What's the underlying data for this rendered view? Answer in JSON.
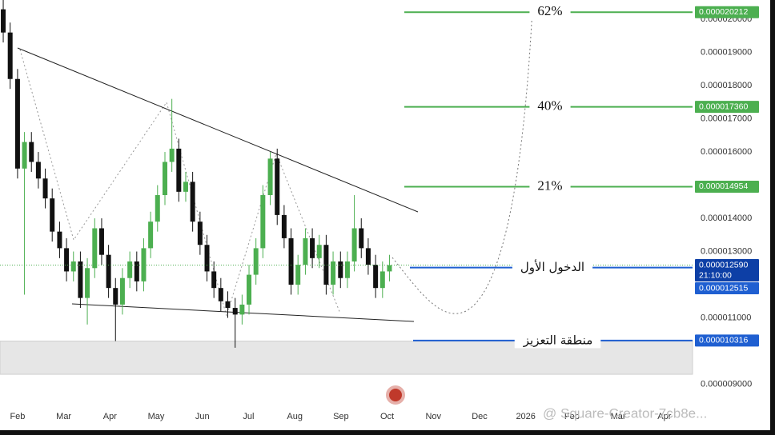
{
  "chart_data": {
    "type": "candlestick",
    "x": [
      -0.31,
      -0.16,
      0.0,
      0.15,
      0.3,
      0.45,
      0.6,
      0.75,
      0.91,
      1.06,
      1.21,
      1.36,
      1.51,
      1.67,
      1.82,
      1.97,
      2.12,
      2.27,
      2.43,
      2.58,
      2.73,
      2.88,
      3.03,
      3.19,
      3.34,
      3.49,
      3.64,
      3.79,
      3.95,
      4.1,
      4.25,
      4.4,
      4.55,
      4.71,
      4.86,
      5.01,
      5.16,
      5.31,
      5.47,
      5.62,
      5.77,
      5.92,
      6.07,
      6.23,
      6.38,
      6.53,
      6.68,
      6.83,
      6.99,
      7.14,
      7.29,
      7.44,
      7.59,
      7.75,
      7.9,
      8.05
    ],
    "open": [
      2.03e-05,
      1.96e-05,
      1.82e-05,
      1.55e-05,
      1.63e-05,
      1.57e-05,
      1.52e-05,
      1.46e-05,
      1.36e-05,
      1.31e-05,
      1.24e-05,
      1.27e-05,
      1.16e-05,
      1.25e-05,
      1.37e-05,
      1.29e-05,
      1.19e-05,
      1.14e-05,
      1.22e-05,
      1.27e-05,
      1.21e-05,
      1.31e-05,
      1.39e-05,
      1.47e-05,
      1.57e-05,
      1.61e-05,
      1.48e-05,
      1.51e-05,
      1.39e-05,
      1.32e-05,
      1.24e-05,
      1.19e-05,
      1.15e-05,
      1.13e-05,
      1.11e-05,
      1.14e-05,
      1.23e-05,
      1.31e-05,
      1.47e-05,
      1.58e-05,
      1.41e-05,
      1.34e-05,
      1.2e-05,
      1.26e-05,
      1.34e-05,
      1.28e-05,
      1.32e-05,
      1.2e-05,
      1.27e-05,
      1.22e-05,
      1.27e-05,
      1.37e-05,
      1.31e-05,
      1.26e-05,
      1.19e-05,
      1.24e-05
    ],
    "high": [
      2.06e-05,
      1.99e-05,
      1.85e-05,
      1.66e-05,
      1.66e-05,
      1.6e-05,
      1.55e-05,
      1.49e-05,
      1.39e-05,
      1.34e-05,
      1.3e-05,
      1.3e-05,
      1.28e-05,
      1.4e-05,
      1.4e-05,
      1.32e-05,
      1.22e-05,
      1.25e-05,
      1.3e-05,
      1.3e-05,
      1.34e-05,
      1.42e-05,
      1.5e-05,
      1.6e-05,
      1.76e-05,
      1.64e-05,
      1.54e-05,
      1.54e-05,
      1.42e-05,
      1.35e-05,
      1.27e-05,
      1.22e-05,
      1.18e-05,
      1.16e-05,
      1.17e-05,
      1.26e-05,
      1.34e-05,
      1.5e-05,
      1.6e-05,
      1.61e-05,
      1.44e-05,
      1.37e-05,
      1.29e-05,
      1.37e-05,
      1.37e-05,
      1.35e-05,
      1.35e-05,
      1.3e-05,
      1.3e-05,
      1.3e-05,
      1.47e-05,
      1.4e-05,
      1.34e-05,
      1.29e-05,
      1.27e-05,
      1.29e-05
    ],
    "low": [
      1.93e-05,
      1.79e-05,
      1.52e-05,
      1.17e-05,
      1.54e-05,
      1.49e-05,
      1.43e-05,
      1.33e-05,
      1.28e-05,
      1.21e-05,
      1.21e-05,
      1.13e-05,
      1.08e-05,
      1.22e-05,
      1.26e-05,
      1.16e-05,
      1.03e-05,
      1.11e-05,
      1.19e-05,
      1.18e-05,
      1.18e-05,
      1.28e-05,
      1.36e-05,
      1.44e-05,
      1.54e-05,
      1.45e-05,
      1.45e-05,
      1.36e-05,
      1.29e-05,
      1.21e-05,
      1.16e-05,
      1.12e-05,
      1.1e-05,
      1.01e-05,
      1.08e-05,
      1.11e-05,
      1.2e-05,
      1.28e-05,
      1.44e-05,
      1.38e-05,
      1.31e-05,
      1.17e-05,
      1.17e-05,
      1.23e-05,
      1.25e-05,
      1.25e-05,
      1.17e-05,
      1.17e-05,
      1.19e-05,
      1.19e-05,
      1.24e-05,
      1.28e-05,
      1.23e-05,
      1.16e-05,
      1.16e-05,
      1.21e-05
    ],
    "close": [
      1.96e-05,
      1.82e-05,
      1.55e-05,
      1.63e-05,
      1.57e-05,
      1.52e-05,
      1.46e-05,
      1.36e-05,
      1.31e-05,
      1.24e-05,
      1.27e-05,
      1.16e-05,
      1.25e-05,
      1.37e-05,
      1.29e-05,
      1.19e-05,
      1.14e-05,
      1.22e-05,
      1.27e-05,
      1.21e-05,
      1.31e-05,
      1.39e-05,
      1.47e-05,
      1.57e-05,
      1.61e-05,
      1.48e-05,
      1.51e-05,
      1.39e-05,
      1.32e-05,
      1.24e-05,
      1.19e-05,
      1.15e-05,
      1.13e-05,
      1.11e-05,
      1.14e-05,
      1.23e-05,
      1.31e-05,
      1.47e-05,
      1.58e-05,
      1.41e-05,
      1.34e-05,
      1.2e-05,
      1.26e-05,
      1.34e-05,
      1.28e-05,
      1.32e-05,
      1.2e-05,
      1.27e-05,
      1.22e-05,
      1.27e-05,
      1.37e-05,
      1.31e-05,
      1.26e-05,
      1.19e-05,
      1.24e-05,
      1.259e-05
    ],
    "bull_color": "#4caf50",
    "bear_color": "#111111",
    "xlim": [
      -0.38,
      14.61
    ],
    "xticks": [
      {
        "value": 0,
        "label": "Feb"
      },
      {
        "value": 1,
        "label": "Mar"
      },
      {
        "value": 2,
        "label": "Apr"
      },
      {
        "value": 3,
        "label": "May"
      },
      {
        "value": 4,
        "label": "Jun"
      },
      {
        "value": 5,
        "label": "Jul"
      },
      {
        "value": 6,
        "label": "Aug"
      },
      {
        "value": 7,
        "label": "Sep"
      },
      {
        "value": 8,
        "label": "Oct"
      },
      {
        "value": 9,
        "label": "Nov"
      },
      {
        "value": 10,
        "label": "Dec"
      },
      {
        "value": 11,
        "label": "2026"
      },
      {
        "value": 12,
        "label": "Feb"
      },
      {
        "value": 13,
        "label": "Mar"
      },
      {
        "value": 14,
        "label": "Apr"
      }
    ],
    "ylim": [
      8.41e-06,
      2.058e-05
    ],
    "yticks": [
      {
        "value": 2e-05,
        "label": "0.000020000"
      },
      {
        "value": 1.9e-05,
        "label": "0.000019000"
      },
      {
        "value": 1.8e-05,
        "label": "0.000018000"
      },
      {
        "value": 1.7e-05,
        "label": "0.000017000"
      },
      {
        "value": 1.6e-05,
        "label": "0.000016000"
      },
      {
        "value": 1.4e-05,
        "label": "0.000014000"
      },
      {
        "value": 1.3e-05,
        "label": "0.000013000"
      },
      {
        "value": 1.1e-05,
        "label": "0.000011000"
      },
      {
        "value": 9e-06,
        "label": "0.000009000"
      }
    ],
    "zone": [
      9.3e-06,
      1.03e-05
    ],
    "levels": [
      {
        "name": "62%",
        "value": 2.0212e-05,
        "label": "0.000020212",
        "color": "#4caf50"
      },
      {
        "name": "40%",
        "value": 1.736e-05,
        "label": "0.000017360",
        "color": "#4caf50"
      },
      {
        "name": "21%",
        "value": 1.4954e-05,
        "label": "0.000014954",
        "color": "#4caf50"
      },
      {
        "name": "الدخول الأول",
        "value": 1.2515e-05,
        "label": "0.000012515",
        "color": "#1f5fd1"
      },
      {
        "name": "منطقة التعزيز",
        "value": 1.0316e-05,
        "label": "0.000010316",
        "color": "#1f5fd1"
      }
    ],
    "price": {
      "value": 1.259e-05,
      "label": "0.000012590",
      "countdown": "21:10:00",
      "color": "#0d3fa6"
    }
  },
  "watermark": "@ Square-Creator-7cb8e..."
}
